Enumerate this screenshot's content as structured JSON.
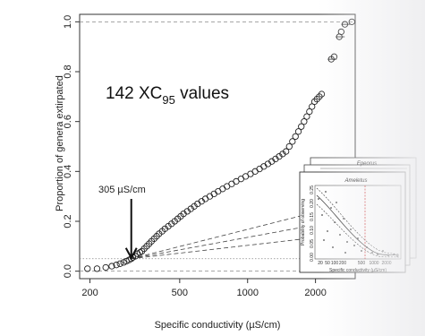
{
  "chart_data": {
    "type": "scatter",
    "title": "",
    "xlabel": "Specific conductivity (µS/cm)",
    "ylabel": "Proportion of genera extirpated",
    "x_scale": "log",
    "xlim": [
      180,
      3000
    ],
    "ylim": [
      -0.03,
      1.03
    ],
    "x_ticks": [
      {
        "value": 200,
        "label": "200"
      },
      {
        "value": 500,
        "label": "500"
      },
      {
        "value": 1000,
        "label": "1000"
      },
      {
        "value": 2000,
        "label": "2000"
      }
    ],
    "y_ticks": [
      {
        "value": 0.0,
        "label": "0.0"
      },
      {
        "value": 0.2,
        "label": "0.2"
      },
      {
        "value": 0.4,
        "label": "0.4"
      },
      {
        "value": 0.6,
        "label": "0.6"
      },
      {
        "value": 0.8,
        "label": "0.8"
      },
      {
        "value": 1.0,
        "label": "1.0"
      }
    ],
    "reference_lines_y": [
      0.0,
      0.05,
      1.0
    ],
    "annotation_main_prefix": "142 XC",
    "annotation_main_sub": "95",
    "annotation_main_suffix": " values",
    "annotation_arrow_label": "305 µS/cm",
    "annotation_arrow_x": 305,
    "annotation_arrow_y": 0.05,
    "points": [
      [
        195,
        0.01
      ],
      [
        215,
        0.01
      ],
      [
        235,
        0.015
      ],
      [
        250,
        0.02
      ],
      [
        262,
        0.025
      ],
      [
        272,
        0.03
      ],
      [
        282,
        0.035
      ],
      [
        290,
        0.04
      ],
      [
        298,
        0.045
      ],
      [
        305,
        0.05
      ],
      [
        310,
        0.055
      ],
      [
        318,
        0.06
      ],
      [
        325,
        0.07
      ],
      [
        333,
        0.075
      ],
      [
        340,
        0.08
      ],
      [
        348,
        0.09
      ],
      [
        357,
        0.1
      ],
      [
        366,
        0.11
      ],
      [
        375,
        0.12
      ],
      [
        385,
        0.13
      ],
      [
        395,
        0.14
      ],
      [
        405,
        0.15
      ],
      [
        418,
        0.16
      ],
      [
        430,
        0.17
      ],
      [
        445,
        0.18
      ],
      [
        460,
        0.19
      ],
      [
        475,
        0.2
      ],
      [
        490,
        0.21
      ],
      [
        505,
        0.22
      ],
      [
        520,
        0.23
      ],
      [
        540,
        0.24
      ],
      [
        560,
        0.25
      ],
      [
        580,
        0.26
      ],
      [
        600,
        0.27
      ],
      [
        625,
        0.28
      ],
      [
        650,
        0.29
      ],
      [
        680,
        0.3
      ],
      [
        710,
        0.31
      ],
      [
        740,
        0.32
      ],
      [
        775,
        0.33
      ],
      [
        810,
        0.34
      ],
      [
        850,
        0.35
      ],
      [
        890,
        0.36
      ],
      [
        935,
        0.37
      ],
      [
        980,
        0.38
      ],
      [
        1030,
        0.39
      ],
      [
        1080,
        0.4
      ],
      [
        1130,
        0.41
      ],
      [
        1180,
        0.42
      ],
      [
        1230,
        0.43
      ],
      [
        1280,
        0.44
      ],
      [
        1330,
        0.45
      ],
      [
        1380,
        0.46
      ],
      [
        1430,
        0.47
      ],
      [
        1480,
        0.48
      ],
      [
        1530,
        0.5
      ],
      [
        1580,
        0.52
      ],
      [
        1630,
        0.54
      ],
      [
        1680,
        0.56
      ],
      [
        1730,
        0.58
      ],
      [
        1780,
        0.6
      ],
      [
        1830,
        0.62
      ],
      [
        1880,
        0.64
      ],
      [
        1930,
        0.66
      ],
      [
        1980,
        0.68
      ],
      [
        2030,
        0.69
      ],
      [
        2080,
        0.7
      ],
      [
        2130,
        0.71
      ],
      [
        2350,
        0.85
      ],
      [
        2420,
        0.86
      ],
      [
        2550,
        0.94
      ],
      [
        2600,
        0.96
      ],
      [
        2700,
        0.99
      ],
      [
        2900,
        1.0
      ]
    ],
    "points_note_hidden": "",
    "dashed_fan_from": [
      305,
      0.05
    ],
    "dashed_fan_to": [
      [
        2800,
        0.27
      ],
      [
        2800,
        0.21
      ],
      [
        2800,
        0.15
      ]
    ],
    "inset_front_title": "Ameletus",
    "inset_back_title": "Epeorus",
    "inset_ylabel": "Probability of observing",
    "inset_xlabel": "Specific conductivity (µS/cm)",
    "inset_x_ticks": [
      "20",
      "50",
      "100",
      "200",
      "500",
      "1000",
      "2000"
    ],
    "inset_y_ticks": [
      "0.00",
      "0.05",
      "0.10",
      "0.15",
      "0.20",
      "0.25"
    ]
  },
  "colors": {
    "marker_stroke": "#222222",
    "arrow": "#111111",
    "inset_redline": "#cc2222"
  }
}
